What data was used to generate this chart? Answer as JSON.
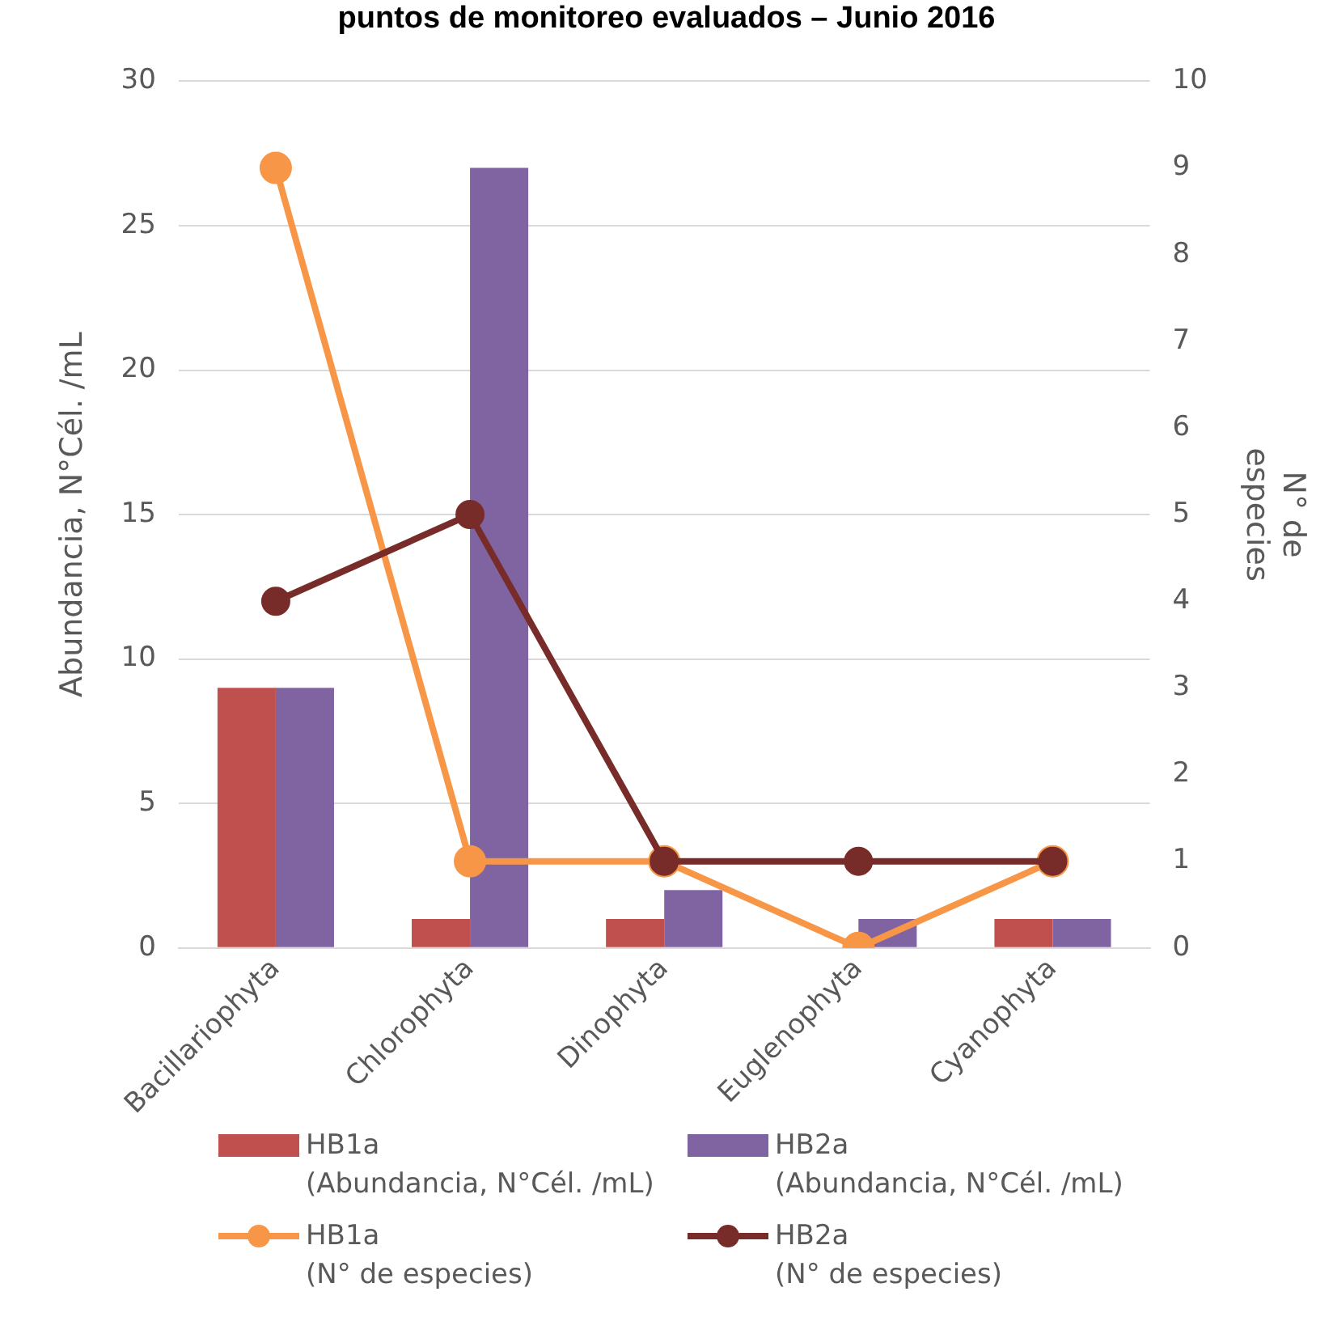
{
  "chart_data": {
    "type": "bar",
    "title": "puntos de monitoreo evaluados – Junio 2016",
    "ylabel": "Abundancia, N°Cél. /mL",
    "y2label": "N° de\nespecies",
    "categories": [
      "Bacillariophyta",
      "Chlorophyta",
      "Dinophyta",
      "Euglenophyta",
      "Cyanophyta"
    ],
    "series": [
      {
        "name": "HB1a\n(Abundancia, N°Cél. /mL)",
        "color": "#c0504d",
        "values": [
          9,
          1,
          1,
          0,
          1
        ]
      },
      {
        "name": "HB2a\n(Abundancia, N°Cél. /mL)",
        "color": "#8064a2",
        "values": [
          9,
          27,
          2,
          1,
          1
        ]
      },
      {
        "name": "HB1a\n(N° de especies)",
        "type": "line",
        "axis": "y2",
        "color": "#f79646",
        "values": [
          9,
          1,
          1,
          0,
          1
        ]
      },
      {
        "name": "HB2a\n(N° de especies)",
        "type": "line",
        "axis": "y2",
        "color": "#772c2a",
        "values": [
          4,
          5,
          1,
          1,
          1
        ]
      }
    ],
    "ylim": [
      0,
      30
    ],
    "yticks": [
      0,
      5,
      10,
      15,
      20,
      25,
      30
    ],
    "y2lim": [
      0,
      10
    ],
    "y2ticks": [
      0,
      1,
      2,
      3,
      4,
      5,
      6,
      7,
      8,
      9,
      10
    ],
    "grid": "y",
    "legend": "bottom",
    "marker": "circle",
    "line_style": "solid"
  }
}
